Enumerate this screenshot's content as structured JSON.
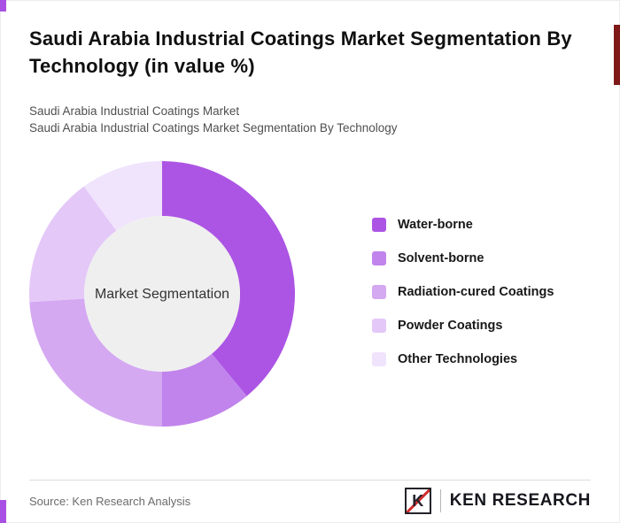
{
  "page": {
    "title": "Saudi Arabia Industrial Coatings Market Segmentation By Technology (in value %)",
    "subtitle_line1": "Saudi Arabia Industrial Coatings Market",
    "subtitle_line2": "Saudi Arabia Industrial Coatings Market Segmentation By Technology"
  },
  "accents": {
    "purple": "#A94FE3",
    "dark_red": "#7E1917"
  },
  "chart_data": {
    "type": "pie",
    "subtype": "donut",
    "title": "Saudi Arabia Industrial Coatings Market Segmentation By Technology (in value %)",
    "center_label": "Market Segmentation",
    "categories": [
      "Water-borne",
      "Solvent-borne",
      "Radiation-cured Coatings",
      "Powder Coatings",
      "Other Technologies"
    ],
    "values": [
      39,
      11,
      24,
      16,
      10
    ],
    "colors": [
      "#AC55E4",
      "#C184EC",
      "#D5A8F2",
      "#E4C8F8",
      "#F0E3FC"
    ],
    "center_fill": "#EFEFEF",
    "center_label_color": "#333333",
    "start_angle": 0,
    "direction": "clockwise",
    "labels_shown": false,
    "legend_position": "right"
  },
  "footer": {
    "source": "Source: Ken Research Analysis",
    "logo": {
      "monogram": "K",
      "text": "KEN RESEARCH",
      "red": "#D22B2B"
    }
  }
}
